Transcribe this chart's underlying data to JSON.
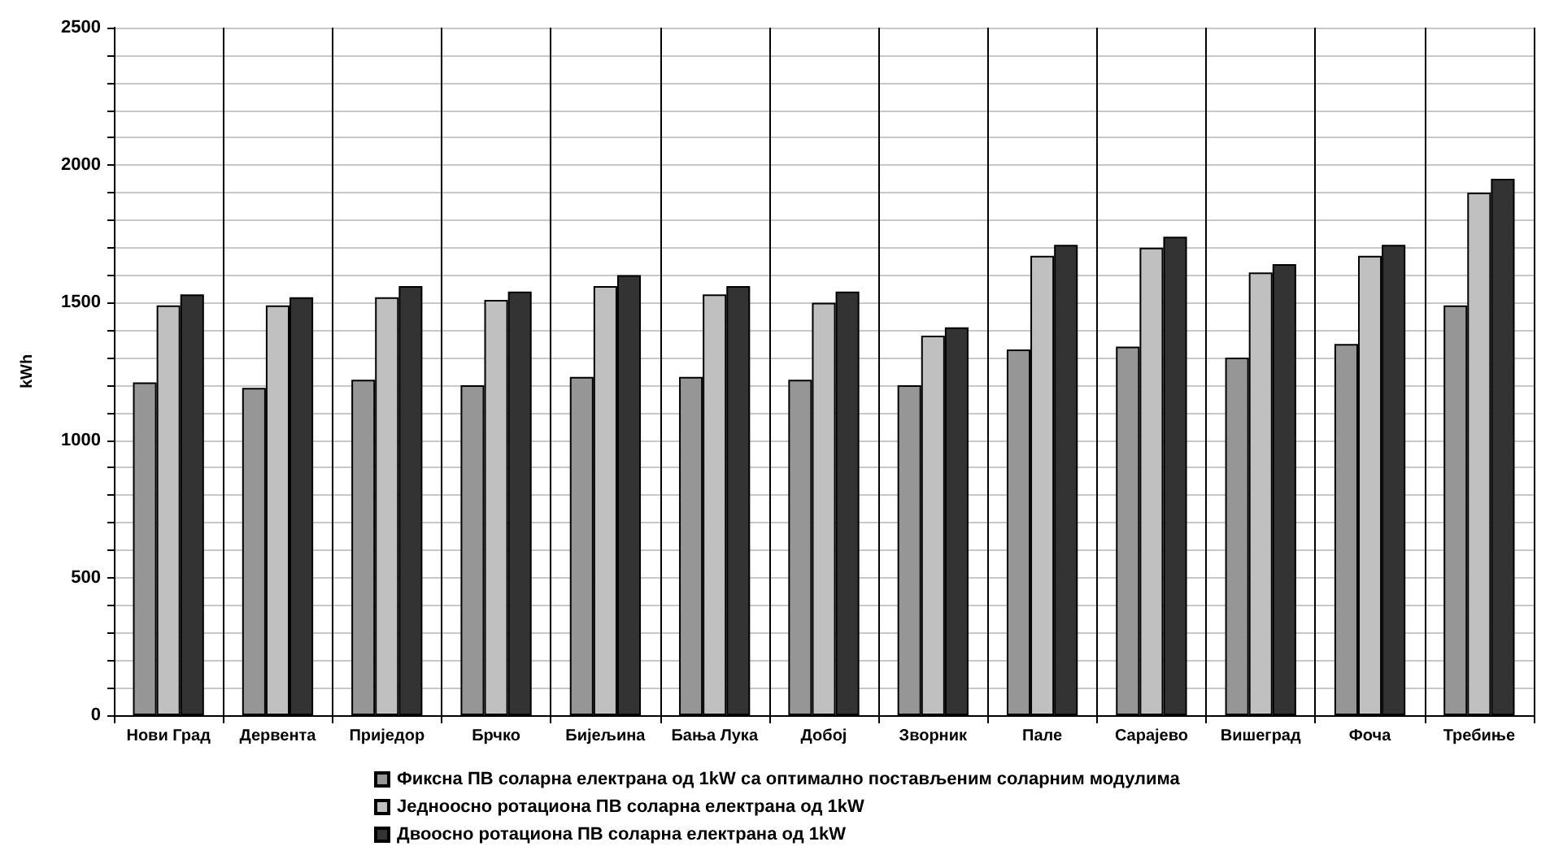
{
  "chart_data": {
    "type": "bar",
    "ylabel": "kWh",
    "categories": [
      "Нови Град",
      "Дервента",
      "Приједор",
      "Брчко",
      "Бијељина",
      "Бања Лука",
      "Добој",
      "Зворник",
      "Пале",
      "Сарајево",
      "Вишеград",
      "Фоча",
      "Требиње"
    ],
    "series": [
      {
        "name": "Фиксна ПВ соларна електрана од 1kW са оптимално постављеним соларним модулима",
        "color": "#969696",
        "values": [
          1210,
          1190,
          1220,
          1200,
          1230,
          1230,
          1220,
          1200,
          1330,
          1340,
          1300,
          1350,
          1490
        ]
      },
      {
        "name": "Једноосно ротациона ПВ соларна електрана од 1kW",
        "color": "#c0c0c0",
        "values": [
          1490,
          1490,
          1520,
          1510,
          1560,
          1530,
          1500,
          1380,
          1670,
          1700,
          1610,
          1670,
          1900
        ]
      },
      {
        "name": "Двоосно ротациона ПВ соларна електрана од 1kW",
        "color": "#333333",
        "values": [
          1530,
          1520,
          1560,
          1540,
          1600,
          1560,
          1540,
          1410,
          1710,
          1740,
          1640,
          1710,
          1950
        ]
      }
    ],
    "ylim": [
      0,
      2500
    ],
    "yticks": [
      0,
      {
        "value": 100,
        "label": null
      },
      {
        "value": 200,
        "label": null
      },
      {
        "value": 300,
        "label": null
      },
      {
        "value": 400,
        "label": null
      },
      500,
      {
        "value": 600,
        "label": null
      },
      {
        "value": 700,
        "label": null
      },
      {
        "value": 800,
        "label": null
      },
      {
        "value": 900,
        "label": null
      },
      1000,
      {
        "value": 1100,
        "label": null
      },
      {
        "value": 1200,
        "label": null
      },
      {
        "value": 1300,
        "label": null
      },
      {
        "value": 1400,
        "label": null
      },
      1500,
      {
        "value": 1600,
        "label": null
      },
      {
        "value": 1700,
        "label": null
      },
      {
        "value": 1800,
        "label": null
      },
      {
        "value": 1900,
        "label": null
      },
      2000,
      {
        "value": 2100,
        "label": null
      },
      {
        "value": 2200,
        "label": null
      },
      {
        "value": 2300,
        "label": null
      },
      {
        "value": 2400,
        "label": null
      },
      2500
    ],
    "grid": true,
    "legend": "bottom"
  }
}
